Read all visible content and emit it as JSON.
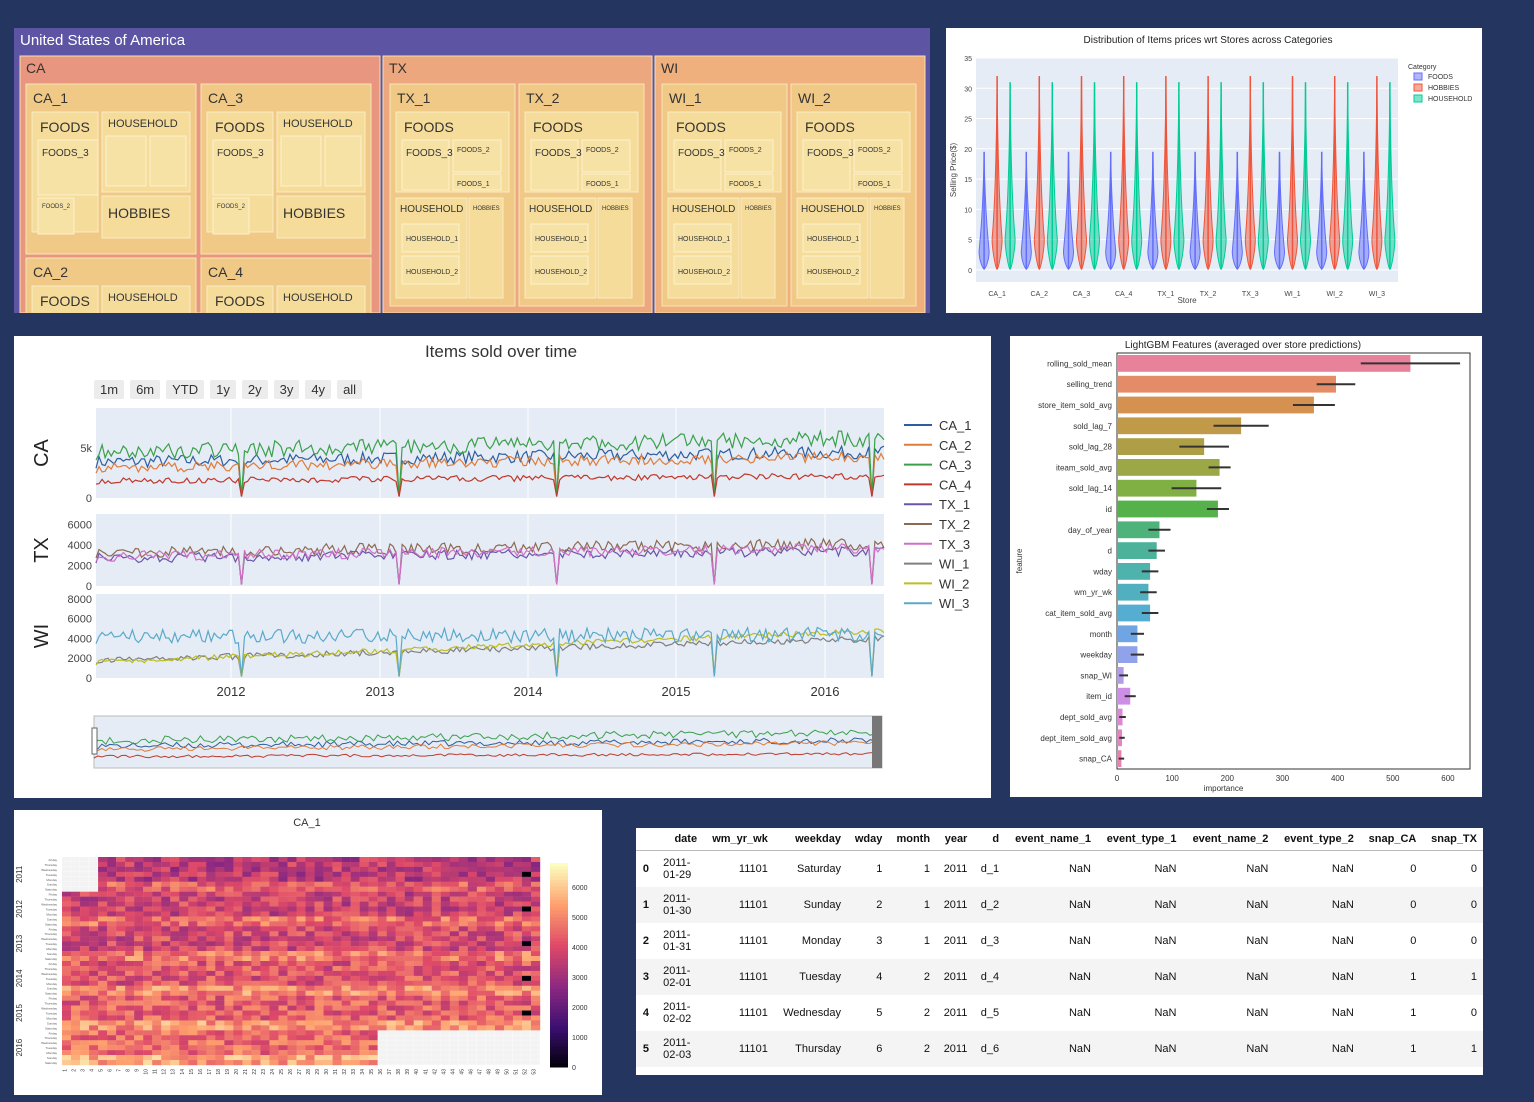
{
  "treemap": {
    "root": "United States of America",
    "states": [
      {
        "name": "CA",
        "stores": [
          {
            "name": "CA_1",
            "cats": [
              "FOODS",
              "HOUSEHOLD",
              "HOBBIES"
            ],
            "depts": [
              "FOODS_3",
              "FOODS_2"
            ]
          },
          {
            "name": "CA_3",
            "cats": [
              "FOODS",
              "HOUSEHOLD",
              "HOBBIES"
            ],
            "depts": [
              "FOODS_3",
              "FOODS_2"
            ]
          },
          {
            "name": "CA_2",
            "cats": [
              "FOODS",
              "HOUSEHOLD"
            ]
          },
          {
            "name": "CA_4",
            "cats": [
              "FOODS",
              "HOUSEHOLD"
            ]
          }
        ]
      },
      {
        "name": "TX",
        "stores": [
          {
            "name": "TX_1",
            "cats": [
              "FOODS",
              "HOUSEHOLD",
              "HOBBIES"
            ],
            "depts": [
              "FOODS_3",
              "FOODS_2",
              "FOODS_1",
              "HOUSEHOLD_1",
              "HOUSEHOLD_2"
            ]
          },
          {
            "name": "TX_2",
            "cats": [
              "FOODS",
              "HOUSEHOLD",
              "HOBBIES"
            ],
            "depts": [
              "FOODS_3",
              "FOODS_2",
              "FOODS_1",
              "HOUSEHOLD_1",
              "HOUSEHOLD_2"
            ]
          }
        ]
      },
      {
        "name": "WI",
        "stores": [
          {
            "name": "WI_1",
            "cats": [
              "FOODS",
              "HOUSEHOLD",
              "HOBBIES"
            ],
            "depts": [
              "FOODS_3",
              "FOODS_2",
              "FOODS_1",
              "HOUSEHOLD_1",
              "HOUSEHOLD_2"
            ]
          },
          {
            "name": "WI_2",
            "cats": [
              "FOODS",
              "HOUSEHOLD",
              "HOBBIES"
            ],
            "depts": [
              "FOODS_3",
              "FOODS_2",
              "FOODS_1",
              "HOUSEHOLD_1",
              "HOUSEHOLD_2"
            ]
          }
        ]
      }
    ]
  },
  "chart_data": [
    {
      "type": "violin",
      "title": "Distribution of Items prices wrt Stores across Categories",
      "xlabel": "Store",
      "ylabel": "Selling Price($)",
      "categories": [
        "CA_1",
        "CA_2",
        "CA_3",
        "CA_4",
        "TX_1",
        "TX_2",
        "TX_3",
        "WI_1",
        "WI_2",
        "WI_3"
      ],
      "ylim": [
        -2,
        35
      ],
      "yticks": [
        0,
        5,
        10,
        15,
        20,
        25,
        30,
        35
      ],
      "legend_title": "Category",
      "legend_position": "top-right",
      "series": [
        {
          "name": "FOODS",
          "color": "#636efa",
          "min": 0.1,
          "max": 19.5,
          "median": 3
        },
        {
          "name": "HOBBIES",
          "color": "#ef553b",
          "min": 0.1,
          "max": 32,
          "median": 5
        },
        {
          "name": "HOUSEHOLD",
          "color": "#00cc96",
          "min": 0.1,
          "max": 31,
          "median": 5
        }
      ]
    },
    {
      "type": "line",
      "title": "Items sold over time",
      "range_selector": [
        "1m",
        "6m",
        "YTD",
        "1y",
        "2y",
        "3y",
        "4y",
        "all"
      ],
      "xticks": [
        "2012",
        "2013",
        "2014",
        "2015",
        "2016"
      ],
      "subplots": [
        {
          "ylabel": "CA",
          "yticks": [
            "0",
            "5k"
          ],
          "ylim": [
            0,
            9000
          ],
          "series": [
            {
              "name": "CA_1",
              "color": "#2e5e9e",
              "level": 3600,
              "end": 4600
            },
            {
              "name": "CA_2",
              "color": "#e07b39",
              "level": 3000,
              "end": 4200
            },
            {
              "name": "CA_3",
              "color": "#3aa04a",
              "level": 4600,
              "end": 6000
            },
            {
              "name": "CA_4",
              "color": "#c0392b",
              "level": 1700,
              "end": 2200
            }
          ]
        },
        {
          "ylabel": "TX",
          "yticks": [
            "0",
            "2000",
            "4000",
            "6000"
          ],
          "ylim": [
            0,
            7000
          ],
          "series": [
            {
              "name": "TX_1",
              "color": "#6a55a8",
              "level": 2700,
              "end": 3400
            },
            {
              "name": "TX_2",
              "color": "#8c6a52",
              "level": 3300,
              "end": 4100
            },
            {
              "name": "TX_3",
              "color": "#d070c8",
              "level": 2900,
              "end": 3700
            }
          ]
        },
        {
          "ylabel": "WI",
          "yticks": [
            "0",
            "2000",
            "4000",
            "6000",
            "8000"
          ],
          "ylim": [
            0,
            8500
          ],
          "series": [
            {
              "name": "WI_1",
              "color": "#7f7f7f",
              "level": 1800,
              "end": 4000
            },
            {
              "name": "WI_2",
              "color": "#bcbd22",
              "level": 1600,
              "end": 4800
            },
            {
              "name": "WI_3",
              "color": "#5aa9c9",
              "level": 4200,
              "end": 4400
            }
          ]
        }
      ],
      "legend": [
        "CA_1",
        "CA_2",
        "CA_3",
        "CA_4",
        "TX_1",
        "TX_2",
        "TX_3",
        "WI_1",
        "WI_2",
        "WI_3"
      ]
    },
    {
      "type": "bar",
      "orientation": "horizontal",
      "title": "LightGBM Features (averaged over store predictions)",
      "xlabel": "importance",
      "ylabel": "feature",
      "xlim": [
        0,
        640
      ],
      "xticks": [
        0,
        100,
        200,
        300,
        400,
        500,
        600
      ],
      "categories": [
        "rolling_sold_mean",
        "selling_trend",
        "store_item_sold_avg",
        "sold_lag_7",
        "sold_lag_28",
        "iteam_sold_avg",
        "sold_lag_14",
        "id",
        "day_of_year",
        "d",
        "wday",
        "wm_yr_wk",
        "cat_item_sold_avg",
        "month",
        "weekday",
        "snap_WI",
        "item_id",
        "dept_sold_avg",
        "dept_item_sold_avg",
        "snap_CA"
      ],
      "values": [
        532,
        397,
        357,
        225,
        158,
        186,
        144,
        183,
        77,
        72,
        60,
        57,
        60,
        37,
        37,
        12,
        24,
        10,
        9,
        8
      ],
      "errors": [
        90,
        35,
        38,
        50,
        45,
        20,
        45,
        20,
        20,
        15,
        15,
        15,
        15,
        12,
        12,
        8,
        10,
        6,
        5,
        5
      ],
      "colors": [
        "#e8829a",
        "#e38c67",
        "#d4914f",
        "#c19a49",
        "#ae9f47",
        "#9ca846",
        "#80b043",
        "#55b24a",
        "#4db37b",
        "#4cb299",
        "#4eb2ad",
        "#50b0bf",
        "#55aed2",
        "#6ea5e2",
        "#90a2ea",
        "#b39be9",
        "#cd8fe5",
        "#dd88d7",
        "#e683c0",
        "#e982ac"
      ]
    },
    {
      "type": "heatmap",
      "title": "CA_1",
      "year_labels": [
        "2011",
        "2012",
        "2013",
        "2014",
        "2015",
        "2016"
      ],
      "week_labels": [
        "1",
        "2",
        "3",
        "4",
        "5",
        "6",
        "7",
        "8",
        "9",
        "10",
        "11",
        "12",
        "13",
        "14",
        "15",
        "16",
        "17",
        "18",
        "19",
        "20",
        "21",
        "22",
        "23",
        "24",
        "25",
        "26",
        "27",
        "28",
        "29",
        "30",
        "31",
        "32",
        "33",
        "34",
        "35",
        "36",
        "37",
        "38",
        "39",
        "40",
        "41",
        "42",
        "43",
        "44",
        "45",
        "46",
        "47",
        "48",
        "49",
        "50",
        "51",
        "52",
        "53"
      ],
      "day_labels": [
        "Friday",
        "Thursday",
        "Wednesday",
        "Tuesday",
        "Monday",
        "Sunday",
        "Saturday"
      ],
      "colorbar_ticks": [
        "0",
        "1000",
        "2000",
        "3000",
        "4000",
        "5000",
        "6000"
      ],
      "zlim": [
        0,
        6800
      ]
    }
  ],
  "table": {
    "columns": [
      "",
      "date",
      "wm_yr_wk",
      "weekday",
      "wday",
      "month",
      "year",
      "d",
      "event_name_1",
      "event_type_1",
      "event_name_2",
      "event_type_2",
      "snap_CA",
      "snap_TX"
    ],
    "rows": [
      [
        "0",
        "2011-01-29",
        "11101",
        "Saturday",
        "1",
        "1",
        "2011",
        "d_1",
        "NaN",
        "NaN",
        "NaN",
        "NaN",
        "0",
        "0"
      ],
      [
        "1",
        "2011-01-30",
        "11101",
        "Sunday",
        "2",
        "1",
        "2011",
        "d_2",
        "NaN",
        "NaN",
        "NaN",
        "NaN",
        "0",
        "0"
      ],
      [
        "2",
        "2011-01-31",
        "11101",
        "Monday",
        "3",
        "1",
        "2011",
        "d_3",
        "NaN",
        "NaN",
        "NaN",
        "NaN",
        "0",
        "0"
      ],
      [
        "3",
        "2011-02-01",
        "11101",
        "Tuesday",
        "4",
        "2",
        "2011",
        "d_4",
        "NaN",
        "NaN",
        "NaN",
        "NaN",
        "1",
        "1"
      ],
      [
        "4",
        "2011-02-02",
        "11101",
        "Wednesday",
        "5",
        "2",
        "2011",
        "d_5",
        "NaN",
        "NaN",
        "NaN",
        "NaN",
        "1",
        "0"
      ],
      [
        "5",
        "2011-02-03",
        "11101",
        "Thursday",
        "6",
        "2",
        "2011",
        "d_6",
        "NaN",
        "NaN",
        "NaN",
        "NaN",
        "1",
        "1"
      ]
    ]
  }
}
